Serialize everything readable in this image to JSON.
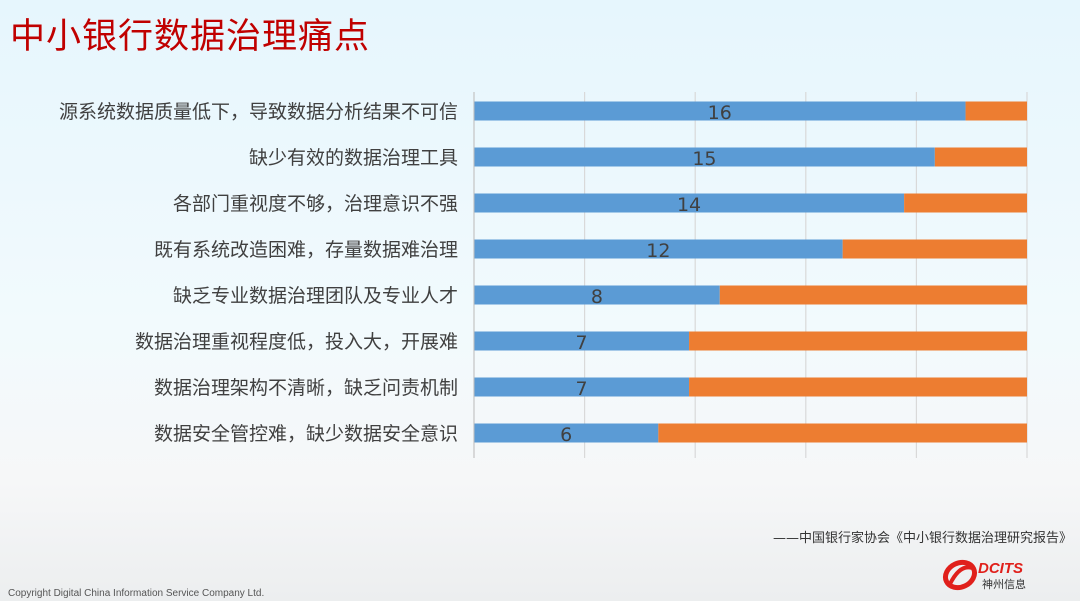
{
  "title": "中小银行数据治理痛点",
  "chart_data": {
    "type": "bar",
    "orientation": "horizontal",
    "stacked": true,
    "categories": [
      "源系统数据质量低下，导致数据分析结果不可信",
      "缺少有效的数据治理工具",
      "各部门重视度不够，治理意识不强",
      "既有系统改造困难，存量数据难治理",
      "缺乏专业数据治理团队及专业人才",
      "数据治理重视程度低，投入大，开展难",
      "数据治理架构不清晰，缺乏问责机制",
      "数据安全管控难，缺少数据安全意识"
    ],
    "series": [
      {
        "values": [
          16,
          15,
          14,
          12,
          8,
          7,
          7,
          6
        ],
        "color": "#5b9bd5",
        "data_labels": true
      },
      {
        "values": [
          2,
          3,
          4,
          6,
          10,
          11,
          11,
          12
        ],
        "color": "#ed7d31"
      }
    ],
    "xlim": [
      0,
      18
    ],
    "grid": true,
    "gridlines": 6,
    "tick_labels_shown": false
  },
  "source": "——中国银行家协会《中小银行数据治理研究报告》",
  "copyright": "Copyright  Digital China Information Service Company Ltd.",
  "logo": {
    "text": "DCITS",
    "subtext": "神州信息",
    "color": "#e0201b"
  }
}
